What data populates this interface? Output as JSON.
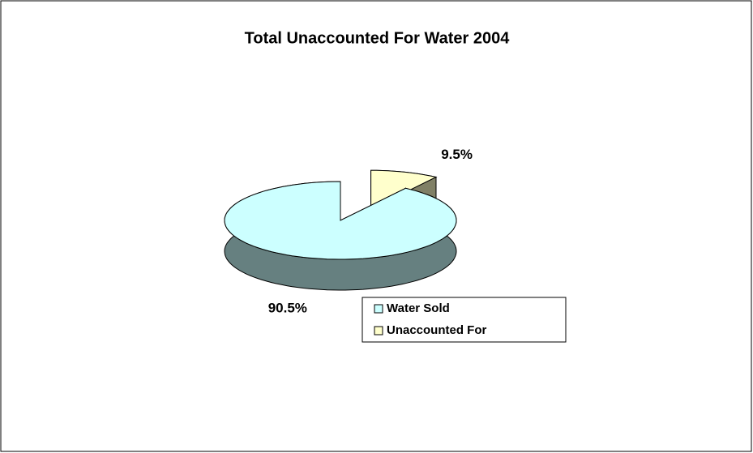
{
  "chart_data": {
    "type": "pie",
    "title": "Total Unaccounted For Water 2004",
    "categories": [
      "Water Sold",
      "Unaccounted For"
    ],
    "values": [
      90.5,
      9.5
    ],
    "value_labels": [
      "90.5%",
      "9.5%"
    ],
    "colors": [
      "#ccffff",
      "#ffffcc"
    ],
    "legend": "bottom"
  }
}
